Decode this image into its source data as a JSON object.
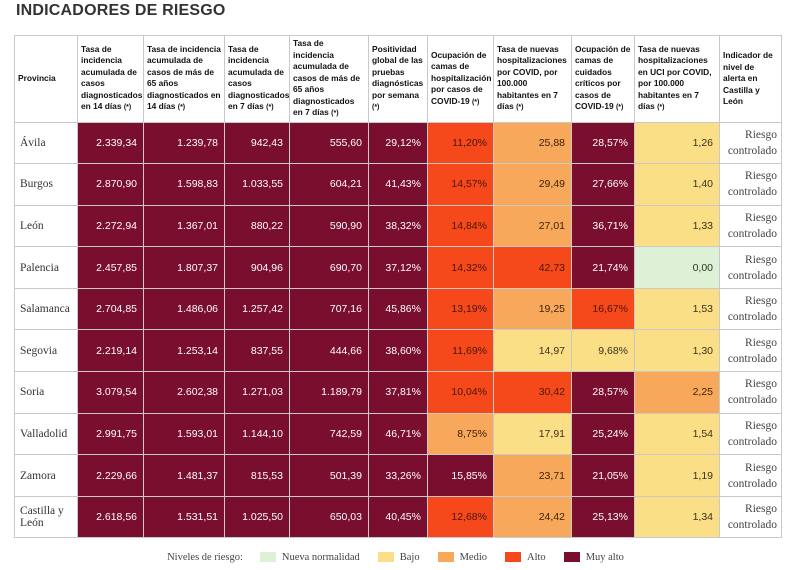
{
  "title": "INDICADORES DE RIESGO",
  "headers": [
    "Provincia",
    "Tasa de incidencia acumulada de casos diagnosticados en 14 días",
    "Tasa de incidencia acumulada de casos de más de 65 años diagnosticados en 14 días",
    "Tasa de incidencia acumulada de casos diagnosticados en 7 días",
    "Tasa de incidencia acumulada de casos de más de 65 años diagnosticados en 7 días",
    "Positividad global de las pruebas diagnósticas por semana",
    "Ocupación de camas de hospitalización por casos de COVID-19",
    "Tasa de nuevas hospitalizaciones por COVID, por 100.000 habitantes en 7 días",
    "Ocupación de camas de cuidados críticos por casos de COVID-19",
    "Tasa de nuevas hospitalizaciones en UCI por COVID, por 100.000 habitantes en 7 días",
    "Indicador de nivel de alerta en Castilla y León"
  ],
  "asterisk": "(*)",
  "rows": [
    {
      "provincia": "Ávila",
      "values": [
        "2.339,34",
        "1.239,78",
        "942,43",
        "555,60",
        "29,12%",
        "11,20%",
        "25,88",
        "28,57%",
        "1,26"
      ],
      "levels": [
        "mal",
        "mal",
        "mal",
        "mal",
        "mal",
        "alt",
        "med",
        "mal",
        "baj"
      ],
      "alert": "Riesgo controlado"
    },
    {
      "provincia": "Burgos",
      "values": [
        "2.870,90",
        "1.598,83",
        "1.033,55",
        "604,21",
        "41,43%",
        "14,57%",
        "29,49",
        "27,66%",
        "1,40"
      ],
      "levels": [
        "mal",
        "mal",
        "mal",
        "mal",
        "mal",
        "alt",
        "med",
        "mal",
        "baj"
      ],
      "alert": "Riesgo controlado"
    },
    {
      "provincia": "León",
      "values": [
        "2.272,94",
        "1.367,01",
        "880,22",
        "590,90",
        "38,32%",
        "14,84%",
        "27,01",
        "36,71%",
        "1,33"
      ],
      "levels": [
        "mal",
        "mal",
        "mal",
        "mal",
        "mal",
        "alt",
        "med",
        "mal",
        "baj"
      ],
      "alert": "Riesgo controlado"
    },
    {
      "provincia": "Palencia",
      "values": [
        "2.457,85",
        "1.807,37",
        "904,96",
        "690,70",
        "37,12%",
        "14,32%",
        "42,73",
        "21,74%",
        "0,00"
      ],
      "levels": [
        "mal",
        "mal",
        "mal",
        "mal",
        "mal",
        "alt",
        "alt",
        "mal",
        "nue"
      ],
      "alert": "Riesgo controlado"
    },
    {
      "provincia": "Salamanca",
      "values": [
        "2.704,85",
        "1.486,06",
        "1.257,42",
        "707,16",
        "45,86%",
        "13,19%",
        "19,25",
        "16,67%",
        "1,53"
      ],
      "levels": [
        "mal",
        "mal",
        "mal",
        "mal",
        "mal",
        "alt",
        "med",
        "alt",
        "baj"
      ],
      "alert": "Riesgo controlado"
    },
    {
      "provincia": "Segovia",
      "values": [
        "2.219,14",
        "1.253,14",
        "837,55",
        "444,66",
        "38,60%",
        "11,69%",
        "14,97",
        "9,68%",
        "1,30"
      ],
      "levels": [
        "mal",
        "mal",
        "mal",
        "mal",
        "mal",
        "alt",
        "baj",
        "baj",
        "baj"
      ],
      "alert": "Riesgo controlado"
    },
    {
      "provincia": "Soria",
      "values": [
        "3.079,54",
        "2.602,38",
        "1.271,03",
        "1.189,79",
        "37,81%",
        "10,04%",
        "30,42",
        "28,57%",
        "2,25"
      ],
      "levels": [
        "mal",
        "mal",
        "mal",
        "mal",
        "mal",
        "alt",
        "alt",
        "mal",
        "med"
      ],
      "alert": "Riesgo controlado"
    },
    {
      "provincia": "Valladolid",
      "values": [
        "2.991,75",
        "1.593,01",
        "1.144,10",
        "742,59",
        "46,71%",
        "8,75%",
        "17,91",
        "25,24%",
        "1,54"
      ],
      "levels": [
        "mal",
        "mal",
        "mal",
        "mal",
        "mal",
        "med",
        "baj",
        "mal",
        "baj"
      ],
      "alert": "Riesgo controlado"
    },
    {
      "provincia": "Zamora",
      "values": [
        "2.229,66",
        "1.481,37",
        "815,53",
        "501,39",
        "33,26%",
        "15,85%",
        "23,71",
        "21,05%",
        "1,19"
      ],
      "levels": [
        "mal",
        "mal",
        "mal",
        "mal",
        "mal",
        "mal",
        "med",
        "mal",
        "baj"
      ],
      "alert": "Riesgo controlado"
    },
    {
      "provincia": "Castilla y León",
      "values": [
        "2.618,56",
        "1.531,51",
        "1.025,50",
        "650,03",
        "40,45%",
        "12,68%",
        "24,42",
        "25,13%",
        "1,34"
      ],
      "levels": [
        "mal",
        "mal",
        "mal",
        "mal",
        "mal",
        "alt",
        "med",
        "mal",
        "baj"
      ],
      "alert": "Riesgo controlado"
    }
  ],
  "legend": {
    "label": "Niveles de riesgo:",
    "items": [
      {
        "label": "Nueva normalidad",
        "color": "#ddf1d6"
      },
      {
        "label": "Bajo",
        "color": "#fadf86"
      },
      {
        "label": "Medio",
        "color": "#f7a85b"
      },
      {
        "label": "Alto",
        "color": "#f5491b"
      },
      {
        "label": "Muy alto",
        "color": "#7a0e2e"
      }
    ]
  }
}
